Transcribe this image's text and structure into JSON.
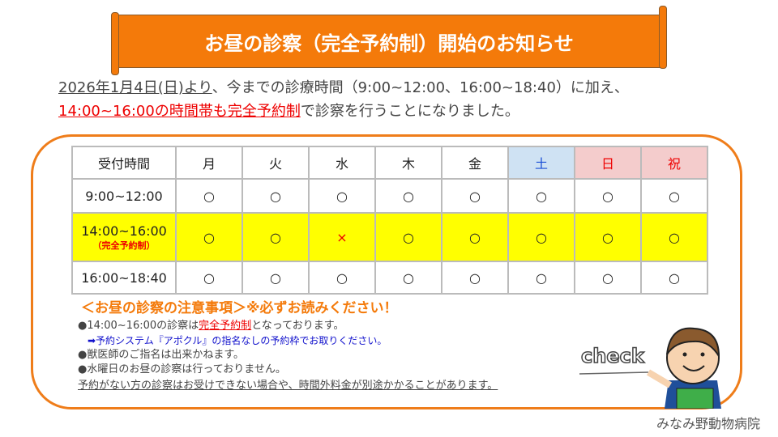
{
  "banner": {
    "title": "お昼の診察（完全予約制）開始のお知らせ"
  },
  "intro": {
    "date": "2026年1月4日(日)より",
    "line1_rest": "、今までの診療時間（9:00~12:00、16:00~18:40）に加え、",
    "highlight": "14:00~16:00の時間帯も完全予約制",
    "line2_rest": "で診察を行うことになりました。"
  },
  "schedule": {
    "headers": [
      "受付時間",
      "月",
      "火",
      "水",
      "木",
      "金",
      "土",
      "日",
      "祝"
    ],
    "rows": [
      {
        "time": "9:00~12:00",
        "note": "",
        "marks": [
          "○",
          "○",
          "○",
          "○",
          "○",
          "○",
          "○",
          "○"
        ]
      },
      {
        "time": "14:00~16:00",
        "note": "（完全予約制）",
        "marks": [
          "○",
          "○",
          "×",
          "○",
          "○",
          "○",
          "○",
          "○"
        ]
      },
      {
        "time": "16:00~18:40",
        "note": "",
        "marks": [
          "○",
          "○",
          "○",
          "○",
          "○",
          "○",
          "○",
          "○"
        ]
      }
    ]
  },
  "notes": {
    "title": "＜お昼の診察の注意事項＞※必ずお読みください！",
    "item1_pre": "●14:00~16:00の診察は",
    "item1_red": "完全予約制",
    "item1_post": "となっております。",
    "item1_sub": "➡予約システム『アポクル』の指名なしの予約枠でお取りください。",
    "item2": "●獣医師のご指名は出来かねます。",
    "item3": "●水曜日のお昼の診察は行っておりません。",
    "warning": "予約がない方の診察はお受けできない場合や、時間外料金が別途かかることがあります。"
  },
  "illustration": {
    "text": "check"
  },
  "footer": {
    "clinic": "みなみ野動物病院"
  },
  "colors": {
    "accent": "#f47a0a",
    "highlight": "#ffff00",
    "saturday": "#cfe2f3",
    "holiday": "#f4cccc"
  }
}
